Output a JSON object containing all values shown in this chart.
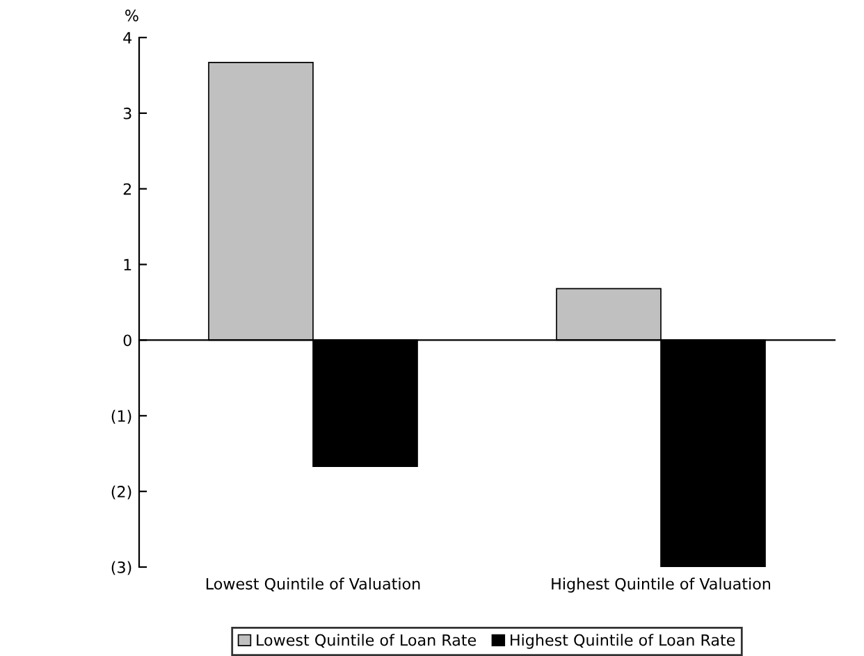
{
  "chart_data": {
    "type": "bar",
    "ylabel": "%",
    "categories": [
      "Lowest Quintile of Valuation",
      "Highest Quintile of Valuation"
    ],
    "series": [
      {
        "name": "Lowest Quintile of Loan Rate",
        "color": "#c0c0c0",
        "values": [
          3.67,
          0.68
        ]
      },
      {
        "name": "Highest Quintile of Loan Rate",
        "color": "#000000",
        "values": [
          -1.67,
          -3.0
        ]
      }
    ],
    "ylim": [
      -3,
      4
    ],
    "yticks": [
      {
        "value": -3,
        "label": "(3)"
      },
      {
        "value": -2,
        "label": "(2)"
      },
      {
        "value": -1,
        "label": "(1)"
      },
      0,
      1,
      2,
      3,
      4
    ],
    "legend": "bottom"
  }
}
